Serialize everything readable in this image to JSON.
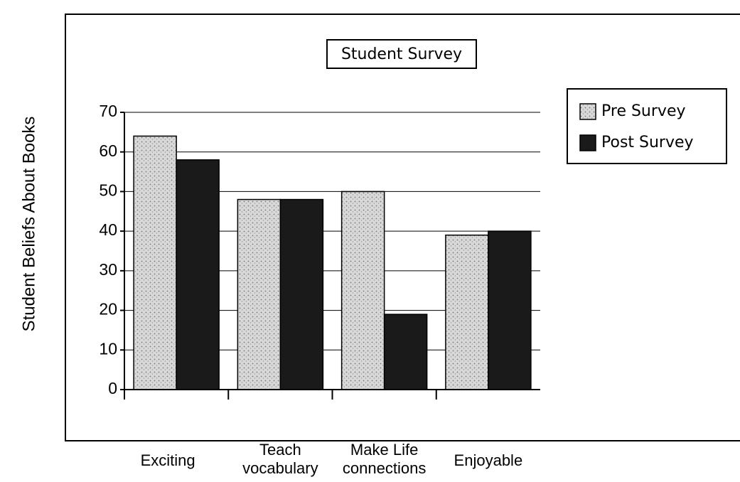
{
  "chart_data": {
    "type": "bar",
    "title": "Student Survey",
    "y_axis_label": "Student Beliefs About Books",
    "categories": [
      "Exciting",
      "Teach\nvocabulary",
      "Make Life\nconnections",
      "Enjoyable"
    ],
    "series": [
      {
        "name": "Pre Survey",
        "color": "#cfcfcf",
        "values": [
          64,
          48,
          50,
          39
        ]
      },
      {
        "name": "Post Survey",
        "color": "#1a1a1a",
        "values": [
          58,
          48,
          19,
          40
        ]
      }
    ],
    "ylim": [
      0,
      70
    ],
    "yticks": [
      0,
      10,
      20,
      30,
      40,
      50,
      60,
      70
    ],
    "grid": true,
    "legend": "right"
  }
}
